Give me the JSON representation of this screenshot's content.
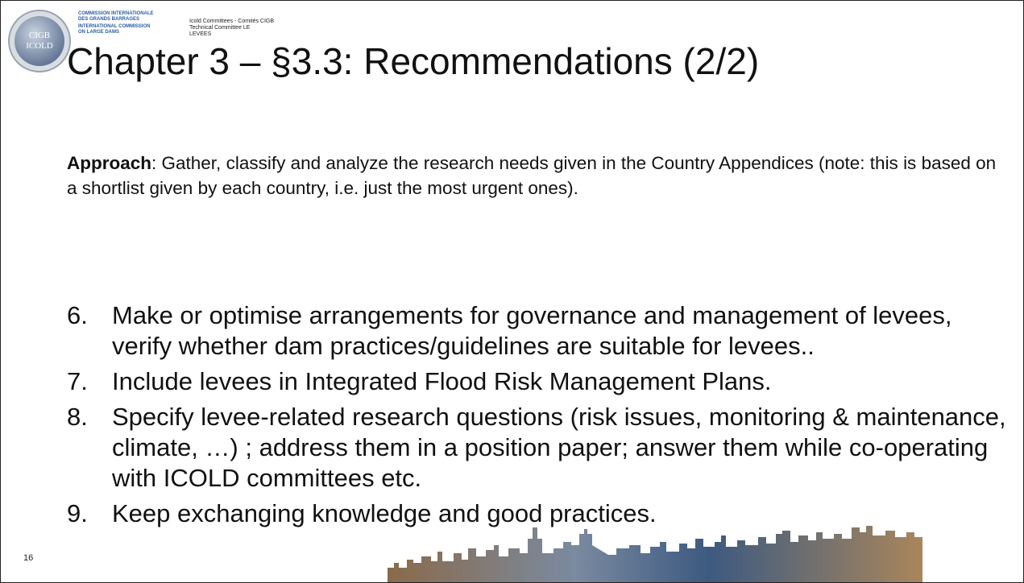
{
  "header": {
    "logo": [
      "CIGB",
      "ICOLD"
    ],
    "org_lines": [
      "COMMISSION INTERNATIONALE",
      "DES GRANDS BARRAGES",
      "INTERNATIONAL COMMISSION",
      "ON LARGE DAMS"
    ],
    "committee_lines": [
      "Icold Committees - Comités CIGB",
      "Technical Committee LE",
      "LEVEES"
    ]
  },
  "title": "Chapter 3 – §3.3: Recommendations (2/2)",
  "approach": {
    "label": "Approach",
    "text": ": Gather, classify and analyze the research needs given in the Country Appendices (note: this is based on a shortlist given by each country, i.e. just the most urgent ones)."
  },
  "items": [
    {
      "number": "6.",
      "text": "Make or optimise arrangements for governance and management of levees, verify whether dam practices/guidelines are suitable for levees.."
    },
    {
      "number": "7.",
      "text": "Include levees in Integrated Flood Risk Management Plans."
    },
    {
      "number": "8.",
      "text": "Specify levee-related research questions (risk issues, monitoring & maintenance, climate, …) ; address them in a position paper; answer them while co-operating with ICOLD committees etc."
    },
    {
      "number": "9.",
      "text": "Keep exchanging knowledge and good practices."
    }
  ],
  "page_number": "16"
}
